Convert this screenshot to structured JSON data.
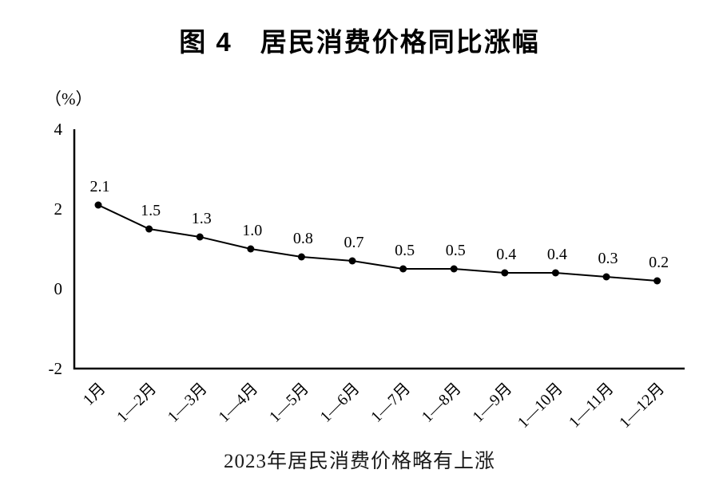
{
  "chart_data": {
    "type": "line",
    "title": "图 4　居民消费价格同比涨幅",
    "unit_label": "（%）",
    "caption": "2023年居民消费价格略有上涨",
    "categories": [
      "1月",
      "1—2月",
      "1—3月",
      "1—4月",
      "1—5月",
      "1—6月",
      "1—7月",
      "1—8月",
      "1—9月",
      "1—10月",
      "1—11月",
      "1—12月"
    ],
    "series": [
      {
        "name": "居民消费价格同比涨幅",
        "values": [
          2.1,
          1.5,
          1.3,
          1.0,
          0.8,
          0.7,
          0.5,
          0.5,
          0.4,
          0.4,
          0.3,
          0.2
        ],
        "labels": [
          "2.1",
          "1.5",
          "1.3",
          "1.0",
          "0.8",
          "0.7",
          "0.5",
          "0.5",
          "0.4",
          "0.4",
          "0.3",
          "0.2"
        ]
      }
    ],
    "ylim": [
      -2,
      4
    ],
    "yticks": [
      4,
      2,
      0,
      -2
    ],
    "xlabel": "",
    "ylabel": "",
    "grid": false,
    "legend": "none",
    "line_color": "#000000",
    "marker": "filled-circle",
    "axis_color": "#000000"
  }
}
